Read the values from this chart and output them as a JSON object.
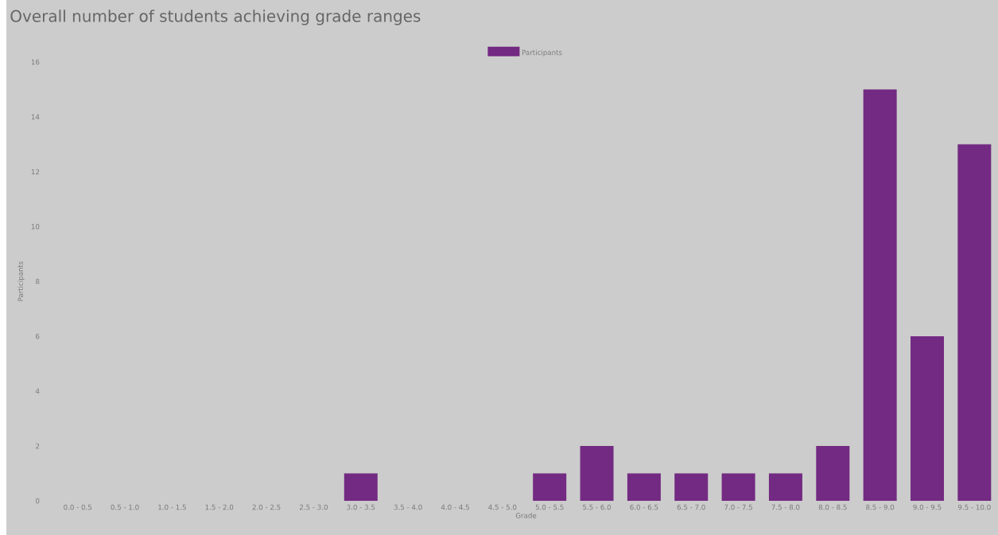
{
  "chart_data": {
    "type": "bar",
    "title": "Overall number of students achieving grade ranges",
    "xlabel": "Grade",
    "ylabel": "Participants",
    "categories": [
      "0.0 - 0.5",
      "0.5 - 1.0",
      "1.0 - 1.5",
      "1.5 - 2.0",
      "2.0 - 2.5",
      "2.5 - 3.0",
      "3.0 - 3.5",
      "3.5 - 4.0",
      "4.0 - 4.5",
      "4.5 - 5.0",
      "5.0 - 5.5",
      "5.5 - 6.0",
      "6.0 - 6.5",
      "6.5 - 7.0",
      "7.0 - 7.5",
      "7.5 - 8.0",
      "8.0 - 8.5",
      "8.5 - 9.0",
      "9.0 - 9.5",
      "9.5 - 10.0"
    ],
    "series": [
      {
        "name": "Participants",
        "color": "#732a82",
        "values": [
          0,
          0,
          0,
          0,
          0,
          0,
          1,
          0,
          0,
          0,
          1,
          2,
          1,
          1,
          1,
          1,
          2,
          15,
          6,
          13
        ]
      }
    ],
    "ylim": [
      0,
      16
    ],
    "yticks": [
      0,
      2,
      4,
      6,
      8,
      10,
      12,
      14,
      16
    ],
    "grid": false,
    "legend": "top"
  }
}
